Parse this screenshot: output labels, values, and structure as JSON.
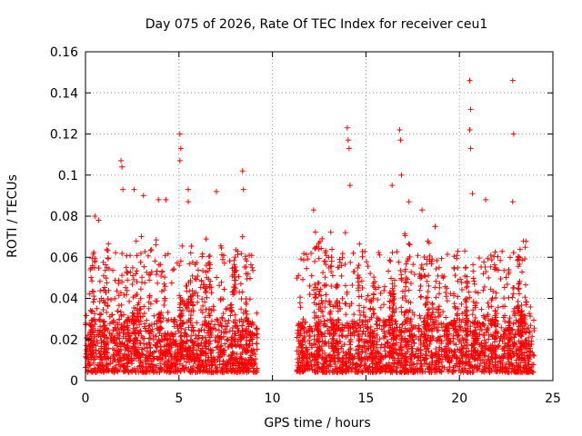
{
  "chart_data": {
    "type": "scatter",
    "title": "Day 075 of 2026, Rate Of TEC Index for receiver ceu1",
    "xlabel": "GPS time / hours",
    "ylabel": "ROTI / TECUs",
    "xlim": [
      0,
      25
    ],
    "ylim": [
      0,
      0.16
    ],
    "xticks": [
      0,
      5,
      10,
      15,
      20,
      25
    ],
    "xtick_labels": [
      "0",
      "5",
      "10",
      "15",
      "20",
      "25"
    ],
    "yticks": [
      0,
      0.02,
      0.04,
      0.06,
      0.08,
      0.1,
      0.12,
      0.14,
      0.16
    ],
    "ytick_labels": [
      "0",
      "0.02",
      "0.04",
      "0.06",
      "0.08",
      "0.1",
      "0.12",
      "0.14",
      "0.16"
    ],
    "grid": true,
    "marker": "+",
    "color": "#ff0000",
    "data_gap_hours": [
      9.2,
      11.3
    ],
    "series": [
      {
        "name": "ROTI",
        "peaks": [
          {
            "x": 0.5,
            "y": 0.08
          },
          {
            "x": 0.7,
            "y": 0.078
          },
          {
            "x": 1.9,
            "y": 0.107
          },
          {
            "x": 1.95,
            "y": 0.104
          },
          {
            "x": 2.0,
            "y": 0.093
          },
          {
            "x": 2.6,
            "y": 0.093
          },
          {
            "x": 3.1,
            "y": 0.09
          },
          {
            "x": 3.9,
            "y": 0.088
          },
          {
            "x": 4.3,
            "y": 0.088
          },
          {
            "x": 5.05,
            "y": 0.12
          },
          {
            "x": 5.1,
            "y": 0.113
          },
          {
            "x": 5.05,
            "y": 0.107
          },
          {
            "x": 5.5,
            "y": 0.093
          },
          {
            "x": 5.5,
            "y": 0.087
          },
          {
            "x": 7.0,
            "y": 0.092
          },
          {
            "x": 8.4,
            "y": 0.102
          },
          {
            "x": 8.45,
            "y": 0.093
          },
          {
            "x": 8.4,
            "y": 0.07
          },
          {
            "x": 12.2,
            "y": 0.083
          },
          {
            "x": 14.0,
            "y": 0.123
          },
          {
            "x": 14.05,
            "y": 0.117
          },
          {
            "x": 14.1,
            "y": 0.113
          },
          {
            "x": 14.15,
            "y": 0.095
          },
          {
            "x": 13.9,
            "y": 0.072
          },
          {
            "x": 16.8,
            "y": 0.122
          },
          {
            "x": 16.85,
            "y": 0.117
          },
          {
            "x": 16.9,
            "y": 0.1
          },
          {
            "x": 16.4,
            "y": 0.095
          },
          {
            "x": 17.3,
            "y": 0.087
          },
          {
            "x": 18.0,
            "y": 0.083
          },
          {
            "x": 18.7,
            "y": 0.075
          },
          {
            "x": 20.55,
            "y": 0.146
          },
          {
            "x": 20.6,
            "y": 0.132
          },
          {
            "x": 20.55,
            "y": 0.122
          },
          {
            "x": 20.6,
            "y": 0.113
          },
          {
            "x": 20.7,
            "y": 0.091
          },
          {
            "x": 21.4,
            "y": 0.088
          },
          {
            "x": 22.85,
            "y": 0.146
          },
          {
            "x": 22.9,
            "y": 0.12
          },
          {
            "x": 22.85,
            "y": 0.087
          },
          {
            "x": 23.2,
            "y": 0.06
          }
        ],
        "segments": [
          {
            "x_start": 0.0,
            "x_end": 9.2,
            "typical_min": 0.004,
            "typical_max": 0.03
          },
          {
            "x_start": 11.3,
            "x_end": 24.0,
            "typical_min": 0.004,
            "typical_max": 0.03
          }
        ]
      }
    ]
  }
}
